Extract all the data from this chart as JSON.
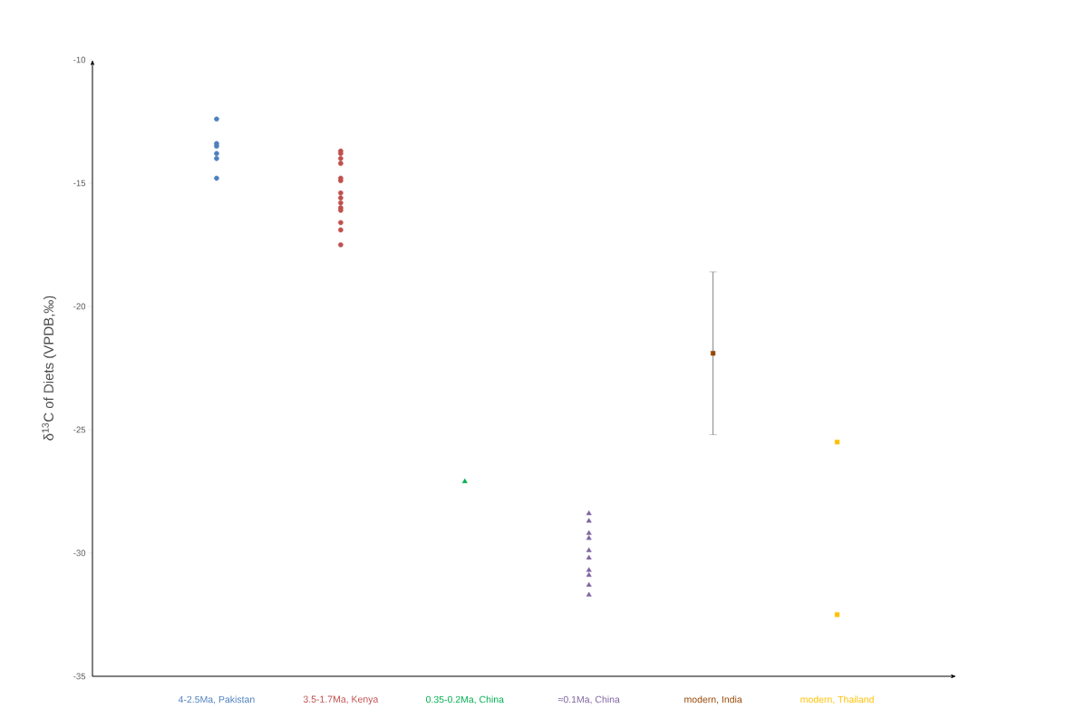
{
  "chart_data": {
    "type": "scatter",
    "ylabel": "δ$^{13}$C of Diets (VPDB,‰)",
    "categories": [
      "4-2.5Ma, Pakistan",
      "3.5-1.7Ma, Kenya",
      "0.35-0.2Ma, China",
      "≈0.1Ma, China",
      "modern, India",
      "modern, Thailand"
    ],
    "ylim": [
      -35,
      -10
    ],
    "yticks": [
      -35,
      -30,
      -25,
      -20,
      -15,
      -10
    ],
    "grid": false,
    "series": [
      {
        "color": "#4f81bd",
        "marker": "circle",
        "x": [
          "4-2.5Ma, Pakistan",
          "4-2.5Ma, Pakistan",
          "4-2.5Ma, Pakistan",
          "4-2.5Ma, Pakistan",
          "4-2.5Ma, Pakistan",
          "4-2.5Ma, Pakistan"
        ],
        "values": [
          -12.4,
          -13.4,
          -13.5,
          -13.8,
          -14.0,
          -14.8
        ]
      },
      {
        "color": "#c0504d",
        "marker": "circle",
        "x": [
          "3.5-1.7Ma, Kenya",
          "3.5-1.7Ma, Kenya",
          "3.5-1.7Ma, Kenya",
          "3.5-1.7Ma, Kenya",
          "3.5-1.7Ma, Kenya",
          "3.5-1.7Ma, Kenya",
          "3.5-1.7Ma, Kenya",
          "3.5-1.7Ma, Kenya",
          "3.5-1.7Ma, Kenya",
          "3.5-1.7Ma, Kenya",
          "3.5-1.7Ma, Kenya",
          "3.5-1.7Ma, Kenya",
          "3.5-1.7Ma, Kenya",
          "3.5-1.7Ma, Kenya"
        ],
        "values": [
          -13.7,
          -13.8,
          -14.0,
          -14.2,
          -14.8,
          -14.9,
          -15.4,
          -15.6,
          -15.8,
          -16.0,
          -16.1,
          -16.6,
          -16.9,
          -17.5
        ]
      },
      {
        "color": "#00b050",
        "marker": "triangle",
        "x": [
          "0.35-0.2Ma, China"
        ],
        "values": [
          -27.1
        ]
      },
      {
        "color": "#8064a2",
        "marker": "triangle",
        "x": [
          "≈0.1Ma, China",
          "≈0.1Ma, China",
          "≈0.1Ma, China",
          "≈0.1Ma, China",
          "≈0.1Ma, China",
          "≈0.1Ma, China",
          "≈0.1Ma, China",
          "≈0.1Ma, China",
          "≈0.1Ma, China",
          "≈0.1Ma, China"
        ],
        "values": [
          -28.4,
          -28.7,
          -29.2,
          -29.4,
          -29.9,
          -30.2,
          -30.7,
          -30.9,
          -31.3,
          -31.7
        ]
      },
      {
        "color": "#984807",
        "marker": "square",
        "x": [
          "modern, India"
        ],
        "values": [
          -21.9
        ],
        "errors": [
          3.3
        ]
      },
      {
        "color": "#ffc000",
        "marker": "square",
        "x": [
          "modern, Thailand",
          "modern, Thailand"
        ],
        "values": [
          -25.5,
          -32.5
        ]
      }
    ]
  }
}
